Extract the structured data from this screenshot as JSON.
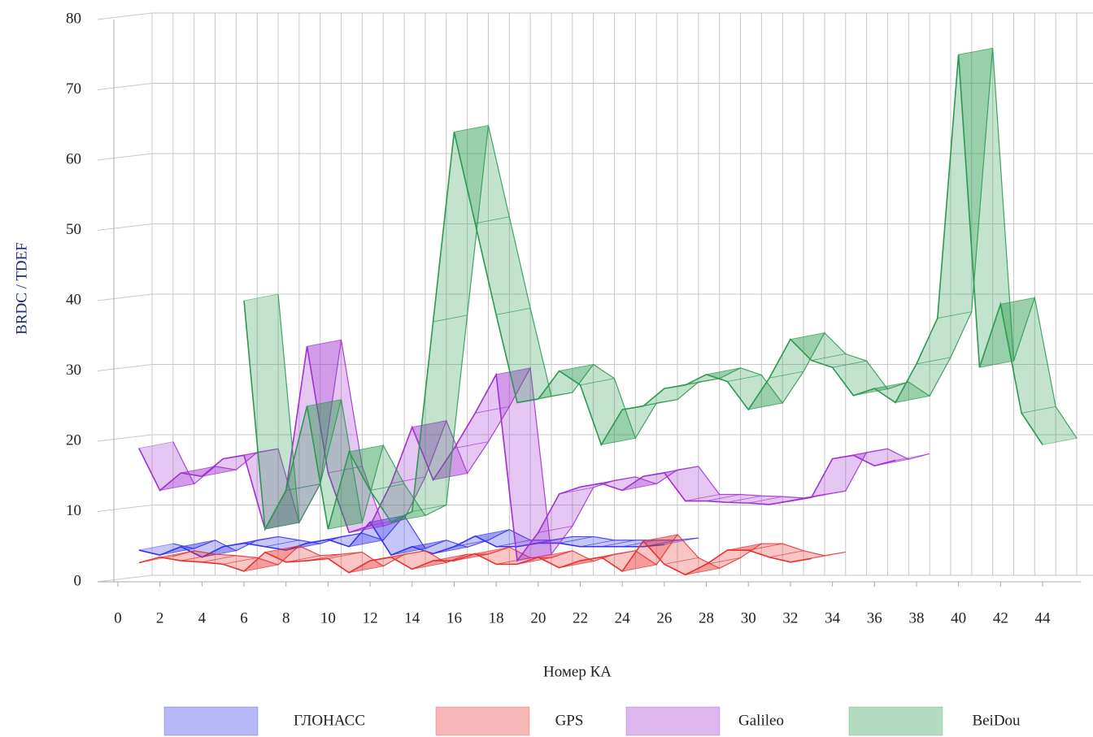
{
  "chart_data": {
    "type": "ribbon",
    "x_label": "Номер КА",
    "y_label": "BRDC / TDEF",
    "x": [
      1,
      2,
      3,
      4,
      5,
      6,
      7,
      8,
      9,
      10,
      11,
      12,
      13,
      14,
      15,
      16,
      17,
      18,
      19,
      20,
      21,
      22,
      23,
      24,
      25,
      26,
      27,
      28,
      29,
      30,
      31,
      32,
      33,
      34,
      35,
      36,
      37,
      38,
      39,
      40,
      41,
      42,
      43,
      44
    ],
    "xlim": [
      0,
      44
    ],
    "ylim": [
      0,
      80
    ],
    "xticks": [
      0,
      2,
      4,
      6,
      8,
      10,
      12,
      14,
      16,
      18,
      20,
      22,
      24,
      26,
      28,
      30,
      32,
      34,
      36,
      38,
      40,
      42,
      44
    ],
    "yticks": [
      0,
      10,
      20,
      30,
      40,
      50,
      60,
      70,
      80
    ],
    "grid": true,
    "series": [
      {
        "name": "ГЛОНАСС",
        "color": "#3333ee",
        "values": [
          4.5,
          3.8,
          5,
          3.5,
          5,
          5.5,
          5,
          4.5,
          5.5,
          6,
          5,
          8.5,
          3.8,
          5,
          4,
          5,
          6.5,
          5,
          5,
          5.5,
          5.5,
          5,
          5,
          5,
          5,
          5.3,
          null,
          null,
          null,
          null,
          null,
          null,
          null,
          null,
          null,
          null,
          null,
          null,
          null,
          null,
          null,
          null,
          null,
          null
        ]
      },
      {
        "name": "GPS",
        "color": "#e83030",
        "values": [
          2.7,
          3.5,
          3,
          2.8,
          2.5,
          1.5,
          4.2,
          2.8,
          3,
          3.3,
          1.3,
          3,
          3.5,
          1.8,
          3,
          3,
          4,
          2.5,
          2.5,
          3.5,
          2,
          3,
          3.5,
          1.5,
          5.8,
          2.5,
          1,
          2.5,
          4.5,
          4.5,
          3.5,
          2.8,
          3.3,
          null,
          null,
          null,
          null,
          null,
          null,
          null,
          null,
          null,
          null,
          null
        ]
      },
      {
        "name": "Galileo",
        "color": "#a030d0",
        "values": [
          19,
          13,
          15.5,
          15,
          17.5,
          18,
          7.5,
          13,
          33.5,
          15.5,
          7,
          8,
          14,
          22,
          14.5,
          19,
          24,
          29.5,
          3,
          7,
          12.5,
          13.5,
          14,
          13,
          15,
          15.5,
          11.5,
          11.5,
          11.3,
          11.2,
          11,
          11.5,
          12,
          17.5,
          18,
          16.5,
          17.3,
          null,
          null,
          null,
          null,
          null,
          null,
          null
        ]
      },
      {
        "name": "BeiDou",
        "color": "#2a9a50",
        "values": [
          null,
          null,
          null,
          null,
          null,
          40,
          7.5,
          13,
          25,
          7.5,
          18.5,
          13,
          8.5,
          10,
          37,
          64,
          51,
          38,
          25.5,
          26,
          30,
          28,
          19.5,
          24.5,
          25,
          27.5,
          28,
          29.5,
          28.5,
          24.5,
          29,
          34.5,
          31.5,
          30.5,
          26.5,
          27.5,
          25.5,
          31,
          37.5,
          75,
          30.5,
          39.5,
          24,
          19.5
        ]
      }
    ]
  }
}
